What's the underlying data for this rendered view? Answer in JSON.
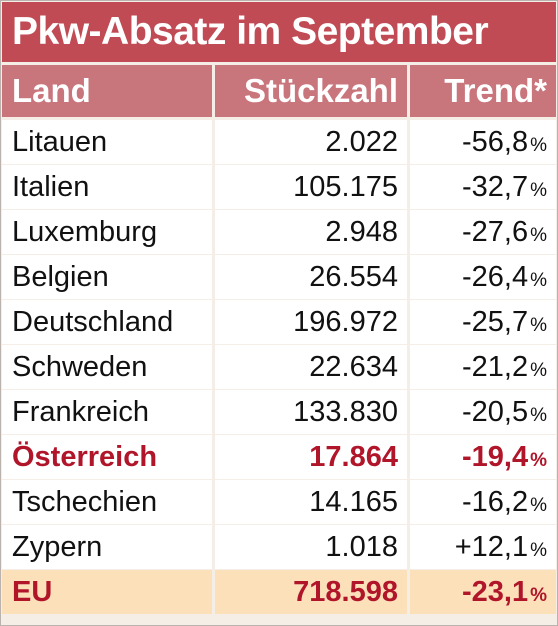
{
  "title": "Pkw-Absatz im September",
  "columns": [
    "Land",
    "Stückzahl",
    "Trend*"
  ],
  "chart_data": {
    "type": "table",
    "title": "Pkw-Absatz im September",
    "columns": [
      "Land",
      "Stückzahl",
      "Trend*"
    ],
    "rows": [
      {
        "land": "Litauen",
        "stueckzahl": "2.022",
        "trend": "-56,8",
        "unit": "%"
      },
      {
        "land": "Italien",
        "stueckzahl": "105.175",
        "trend": "-32,7",
        "unit": "%"
      },
      {
        "land": "Luxemburg",
        "stueckzahl": "2.948",
        "trend": "-27,6",
        "unit": "%"
      },
      {
        "land": "Belgien",
        "stueckzahl": "26.554",
        "trend": "-26,4",
        "unit": "%"
      },
      {
        "land": "Deutschland",
        "stueckzahl": "196.972",
        "trend": "-25,7",
        "unit": "%"
      },
      {
        "land": "Schweden",
        "stueckzahl": "22.634",
        "trend": "-21,2",
        "unit": "%"
      },
      {
        "land": "Frankreich",
        "stueckzahl": "133.830",
        "trend": "-20,5",
        "unit": "%"
      },
      {
        "land": "Österreich",
        "stueckzahl": "17.864",
        "trend": "-19,4",
        "unit": "%",
        "highlight": true
      },
      {
        "land": "Tschechien",
        "stueckzahl": "14.165",
        "trend": "-16,2",
        "unit": "%"
      },
      {
        "land": "Zypern",
        "stueckzahl": "1.018",
        "trend": "+12,1",
        "unit": "%"
      },
      {
        "land": "EU",
        "stueckzahl": "718.598",
        "trend": "-23,1",
        "unit": "%",
        "total": true
      }
    ]
  },
  "colors": {
    "title_bg": "#c04b55",
    "header_bg": "#c9757c",
    "highlight_text": "#b0152a",
    "total_bg": "#fbe0ba",
    "grid": "#f4eee7"
  }
}
